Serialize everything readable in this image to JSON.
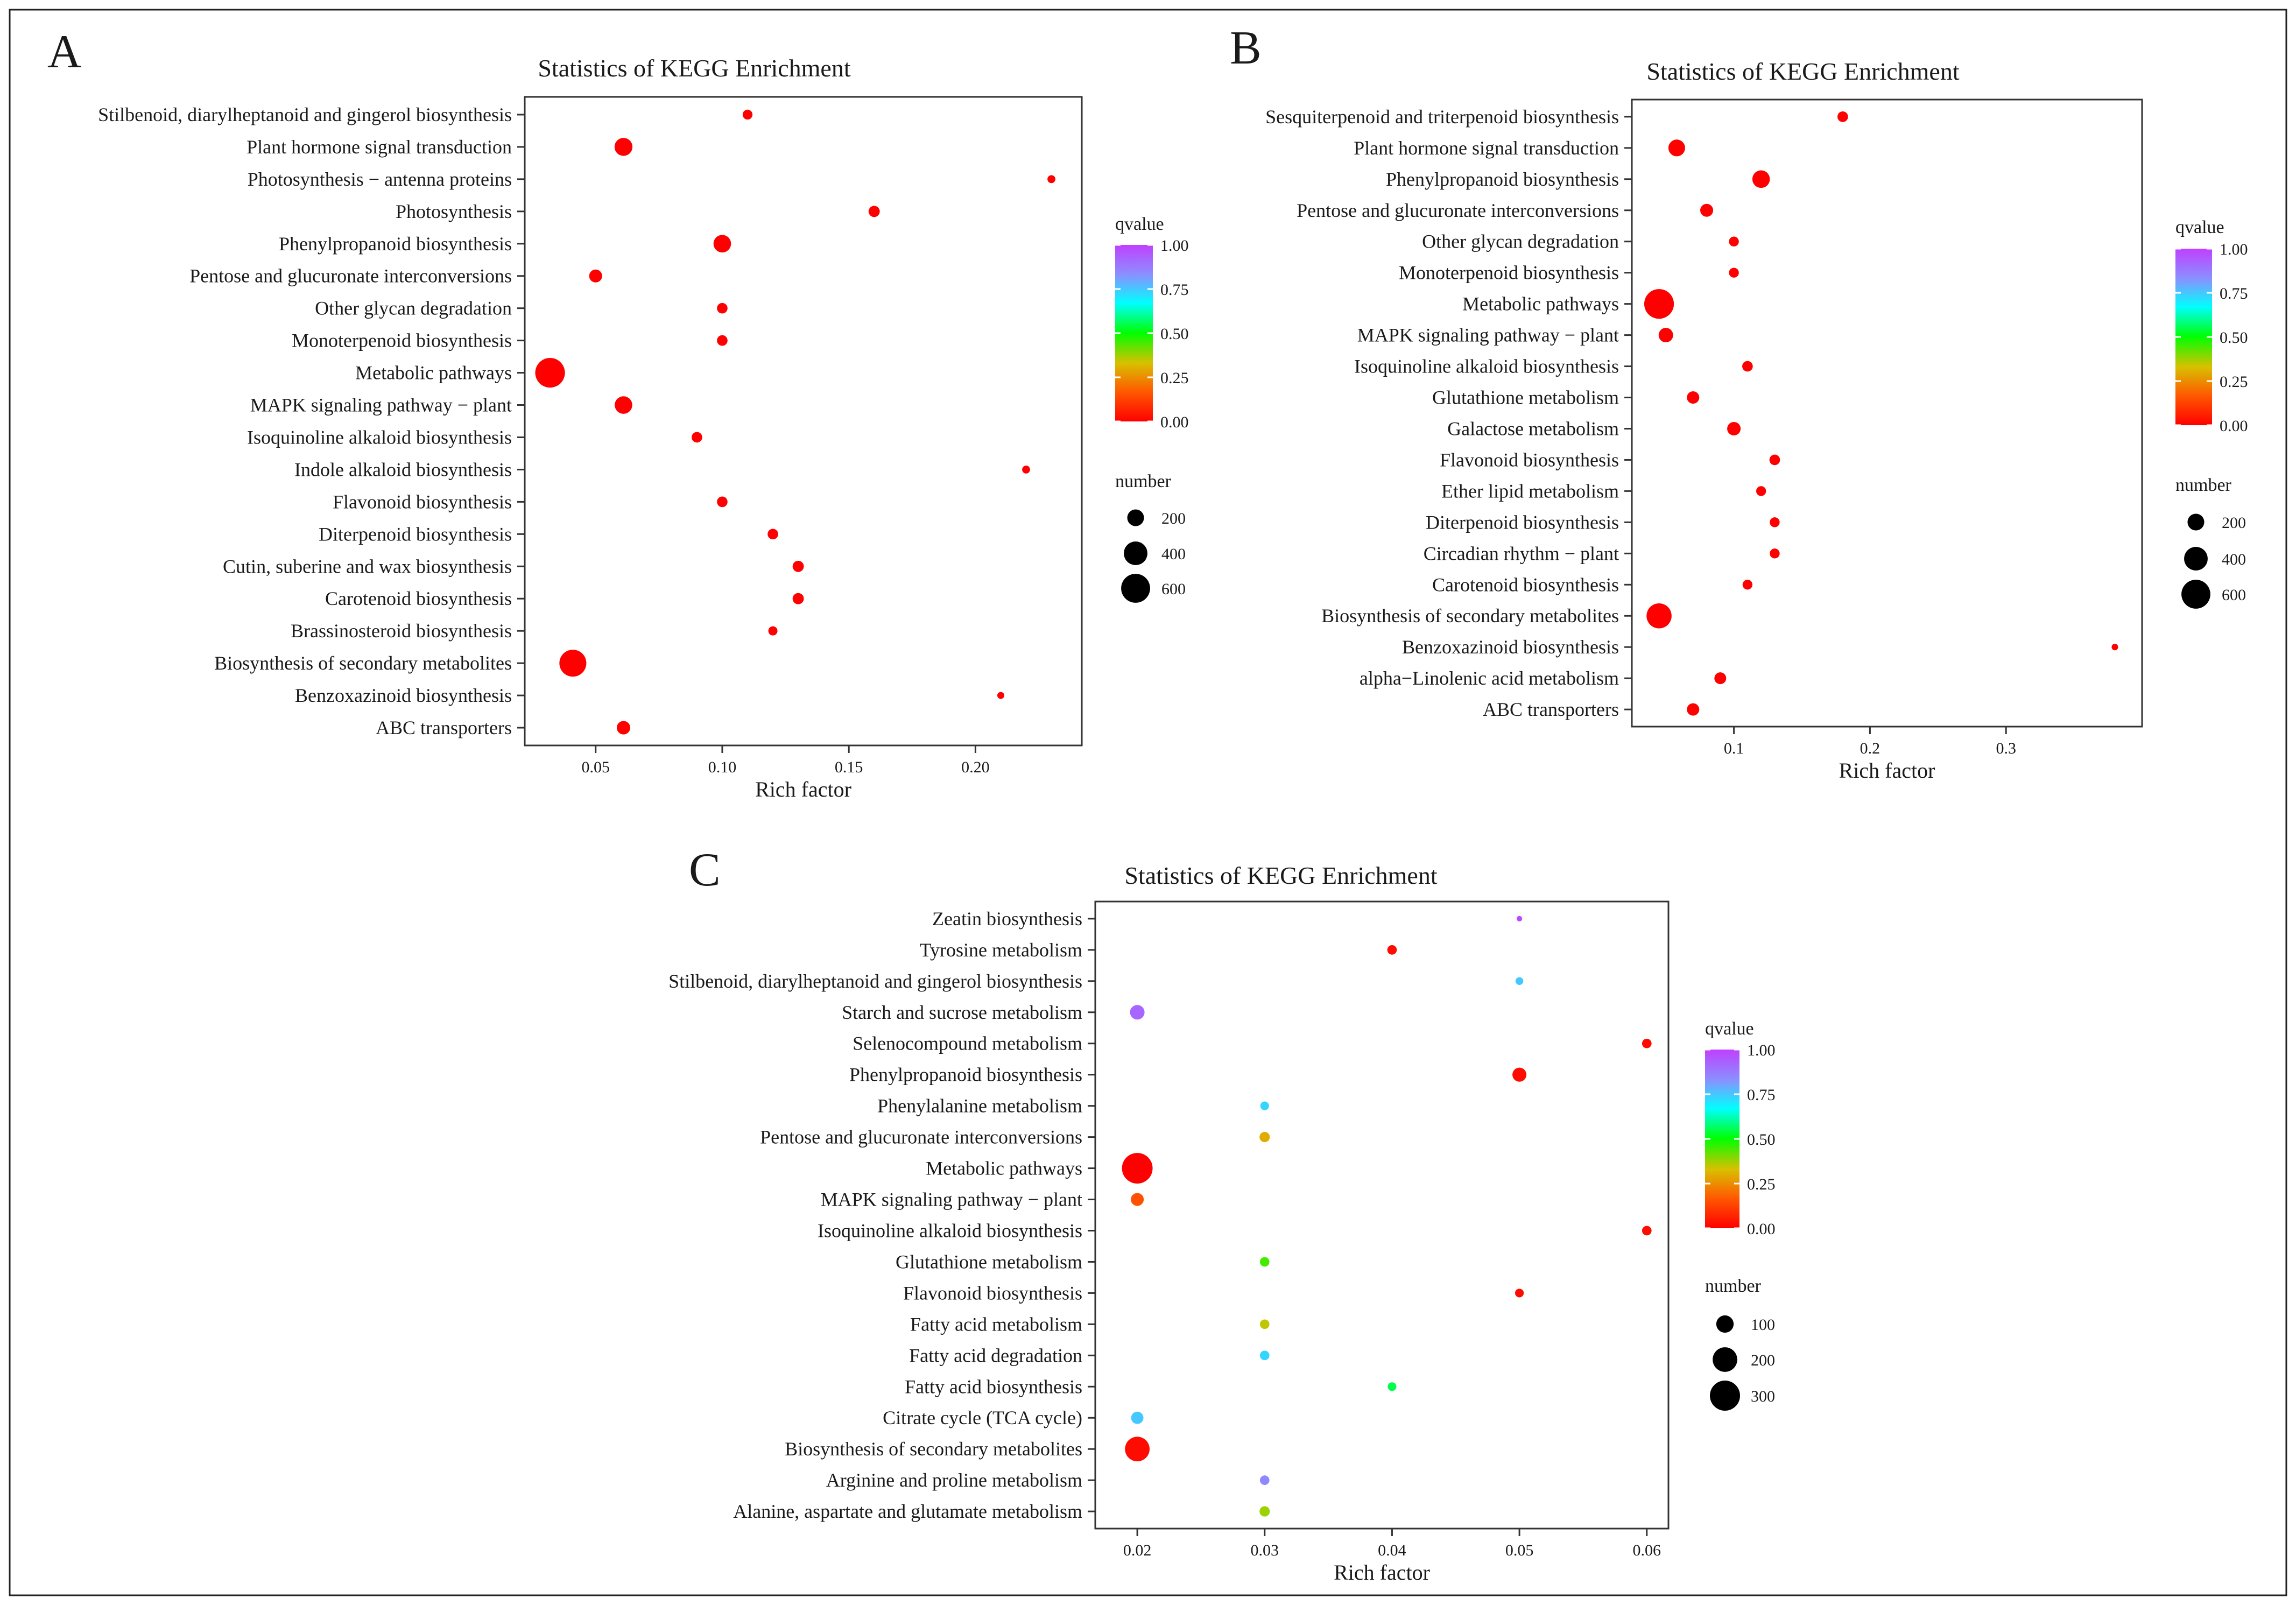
{
  "chart_data": [
    {
      "panel_label": "A",
      "type": "scatter",
      "title": "Statistics of KEGG Enrichment",
      "xlabel": "Rich factor",
      "xlim": [
        0.022,
        0.242
      ],
      "xticks": [
        0.05,
        0.1,
        0.15,
        0.2
      ],
      "xtick_labels": [
        "0.05",
        "0.10",
        "0.15",
        "0.20"
      ],
      "legend_color": {
        "title": "qvalue",
        "ticks": [
          "1.00",
          "0.75",
          "0.50",
          "0.25",
          "0.00"
        ]
      },
      "legend_size": {
        "title": "number",
        "values": [
          200,
          400,
          600
        ],
        "labels": [
          "200",
          "400",
          "600"
        ]
      },
      "size_max": 650,
      "points": [
        {
          "term": "Stilbenoid, diarylheptanoid and gingerol biosynthesis",
          "rich": 0.11,
          "q": 0.0,
          "n": 70
        },
        {
          "term": "Plant hormone signal transduction",
          "rich": 0.061,
          "q": 0.0,
          "n": 230
        },
        {
          "term": "Photosynthesis − antenna proteins",
          "rich": 0.23,
          "q": 0.0,
          "n": 45
        },
        {
          "term": "Photosynthesis",
          "rich": 0.16,
          "q": 0.0,
          "n": 90
        },
        {
          "term": "Phenylpropanoid biosynthesis",
          "rich": 0.1,
          "q": 0.0,
          "n": 220
        },
        {
          "term": "Pentose and glucuronate interconversions",
          "rich": 0.05,
          "q": 0.0,
          "n": 120
        },
        {
          "term": "Other glycan degradation",
          "rich": 0.1,
          "q": 0.0,
          "n": 80
        },
        {
          "term": "Monoterpenoid biosynthesis",
          "rich": 0.1,
          "q": 0.0,
          "n": 80
        },
        {
          "term": "Metabolic pathways",
          "rich": 0.032,
          "q": 0.0,
          "n": 630
        },
        {
          "term": "MAPK signaling pathway − plant",
          "rich": 0.061,
          "q": 0.0,
          "n": 220
        },
        {
          "term": "Isoquinoline alkaloid biosynthesis",
          "rich": 0.09,
          "q": 0.0,
          "n": 80
        },
        {
          "term": "Indole alkaloid biosynthesis",
          "rich": 0.22,
          "q": 0.0,
          "n": 45
        },
        {
          "term": "Flavonoid biosynthesis",
          "rich": 0.1,
          "q": 0.0,
          "n": 80
        },
        {
          "term": "Diterpenoid biosynthesis",
          "rich": 0.12,
          "q": 0.0,
          "n": 80
        },
        {
          "term": "Cutin, suberine and wax biosynthesis",
          "rich": 0.13,
          "q": 0.0,
          "n": 90
        },
        {
          "term": "Carotenoid biosynthesis",
          "rich": 0.13,
          "q": 0.0,
          "n": 90
        },
        {
          "term": "Brassinosteroid biosynthesis",
          "rich": 0.12,
          "q": 0.0,
          "n": 60
        },
        {
          "term": "Biosynthesis of secondary metabolites",
          "rich": 0.041,
          "q": 0.0,
          "n": 520
        },
        {
          "term": "Benzoxazinoid biosynthesis",
          "rich": 0.21,
          "q": 0.0,
          "n": 35
        },
        {
          "term": "ABC transporters",
          "rich": 0.061,
          "q": 0.0,
          "n": 130
        }
      ]
    },
    {
      "panel_label": "B",
      "type": "scatter",
      "title": "Statistics of KEGG Enrichment",
      "xlabel": "Rich factor",
      "xlim": [
        0.025,
        0.4
      ],
      "xticks": [
        0.1,
        0.2,
        0.3
      ],
      "xtick_labels": [
        "0.1",
        "0.2",
        "0.3"
      ],
      "legend_color": {
        "title": "qvalue",
        "ticks": [
          "1.00",
          "0.75",
          "0.50",
          "0.25",
          "0.00"
        ]
      },
      "legend_size": {
        "title": "number",
        "values": [
          200,
          400,
          600
        ],
        "labels": [
          "200",
          "400",
          "600"
        ]
      },
      "size_max": 650,
      "points": [
        {
          "term": "Sesquiterpenoid and triterpenoid biosynthesis",
          "rich": 0.18,
          "q": 0.0,
          "n": 80
        },
        {
          "term": "Plant hormone signal transduction",
          "rich": 0.058,
          "q": 0.0,
          "n": 200
        },
        {
          "term": "Phenylpropanoid biosynthesis",
          "rich": 0.12,
          "q": 0.0,
          "n": 220
        },
        {
          "term": "Pentose and glucuronate interconversions",
          "rich": 0.08,
          "q": 0.0,
          "n": 120
        },
        {
          "term": "Other glycan degradation",
          "rich": 0.1,
          "q": 0.0,
          "n": 70
        },
        {
          "term": "Monoterpenoid biosynthesis",
          "rich": 0.1,
          "q": 0.0,
          "n": 70
        },
        {
          "term": "Metabolic pathways",
          "rich": 0.045,
          "q": 0.0,
          "n": 630
        },
        {
          "term": "MAPK signaling pathway − plant",
          "rich": 0.05,
          "q": 0.0,
          "n": 150
        },
        {
          "term": "Isoquinoline alkaloid biosynthesis",
          "rich": 0.11,
          "q": 0.0,
          "n": 80
        },
        {
          "term": "Glutathione metabolism",
          "rich": 0.07,
          "q": 0.0,
          "n": 110
        },
        {
          "term": "Galactose metabolism",
          "rich": 0.1,
          "q": 0.0,
          "n": 130
        },
        {
          "term": "Flavonoid biosynthesis",
          "rich": 0.13,
          "q": 0.0,
          "n": 80
        },
        {
          "term": "Ether lipid metabolism",
          "rich": 0.12,
          "q": 0.0,
          "n": 70
        },
        {
          "term": "Diterpenoid biosynthesis",
          "rich": 0.13,
          "q": 0.0,
          "n": 70
        },
        {
          "term": "Circadian rhythm − plant",
          "rich": 0.13,
          "q": 0.0,
          "n": 70
        },
        {
          "term": "Carotenoid biosynthesis",
          "rich": 0.11,
          "q": 0.0,
          "n": 70
        },
        {
          "term": "Biosynthesis of secondary metabolites",
          "rich": 0.045,
          "q": 0.0,
          "n": 450
        },
        {
          "term": "Benzoxazinoid biosynthesis",
          "rich": 0.38,
          "q": 0.0,
          "n": 30
        },
        {
          "term": "alpha−Linolenic acid metabolism",
          "rich": 0.09,
          "q": 0.0,
          "n": 100
        },
        {
          "term": "ABC transporters",
          "rich": 0.07,
          "q": 0.0,
          "n": 110
        }
      ]
    },
    {
      "panel_label": "C",
      "type": "scatter",
      "title": "Statistics of KEGG Enrichment",
      "xlabel": "Rich factor",
      "xlim": [
        0.0167,
        0.0617
      ],
      "xticks": [
        0.02,
        0.03,
        0.04,
        0.05,
        0.06
      ],
      "xtick_labels": [
        "0.02",
        "0.03",
        "0.04",
        "0.05",
        "0.06"
      ],
      "legend_color": {
        "title": "qvalue",
        "ticks": [
          "1.00",
          "0.75",
          "0.50",
          "0.25",
          "0.00"
        ]
      },
      "legend_size": {
        "title": "number",
        "values": [
          100,
          200,
          300
        ],
        "labels": [
          "100",
          "200",
          "300"
        ]
      },
      "size_max": 300,
      "points": [
        {
          "term": "Zeatin biosynthesis",
          "rich": 0.05,
          "q": 0.98,
          "n": 10
        },
        {
          "term": "Tyrosine metabolism",
          "rich": 0.04,
          "q": 0.02,
          "n": 30
        },
        {
          "term": "Stilbenoid, diarylheptanoid and gingerol biosynthesis",
          "rich": 0.05,
          "q": 0.75,
          "n": 20
        },
        {
          "term": "Starch and sucrose metabolism",
          "rich": 0.02,
          "q": 0.92,
          "n": 70
        },
        {
          "term": "Selenocompound metabolism",
          "rich": 0.06,
          "q": 0.02,
          "n": 30
        },
        {
          "term": "Phenylpropanoid biosynthesis",
          "rich": 0.05,
          "q": 0.02,
          "n": 65
        },
        {
          "term": "Phenylalanine metabolism",
          "rich": 0.03,
          "q": 0.73,
          "n": 25
        },
        {
          "term": "Pentose and glucuronate interconversions",
          "rich": 0.03,
          "q": 0.3,
          "n": 35
        },
        {
          "term": "Metabolic pathways",
          "rich": 0.02,
          "q": 0.0,
          "n": 310
        },
        {
          "term": "MAPK signaling pathway − plant",
          "rich": 0.02,
          "q": 0.15,
          "n": 55
        },
        {
          "term": "Isoquinoline alkaloid biosynthesis",
          "rich": 0.06,
          "q": 0.02,
          "n": 30
        },
        {
          "term": "Glutathione metabolism",
          "rich": 0.03,
          "q": 0.45,
          "n": 30
        },
        {
          "term": "Flavonoid biosynthesis",
          "rich": 0.05,
          "q": 0.02,
          "n": 25
        },
        {
          "term": "Fatty acid metabolism",
          "rich": 0.03,
          "q": 0.35,
          "n": 30
        },
        {
          "term": "Fatty acid degradation",
          "rich": 0.03,
          "q": 0.73,
          "n": 30
        },
        {
          "term": "Fatty acid biosynthesis",
          "rich": 0.04,
          "q": 0.55,
          "n": 25
        },
        {
          "term": "Citrate cycle (TCA cycle)",
          "rich": 0.02,
          "q": 0.75,
          "n": 50
        },
        {
          "term": "Biosynthesis of secondary metabolites",
          "rich": 0.02,
          "q": 0.02,
          "n": 200
        },
        {
          "term": "Arginine and proline metabolism",
          "rich": 0.03,
          "q": 0.85,
          "n": 30
        },
        {
          "term": "Alanine, aspartate and glutamate metabolism",
          "rich": 0.03,
          "q": 0.38,
          "n": 35
        }
      ]
    }
  ],
  "colors": {
    "gradient": [
      "#ff0000",
      "#ff5a00",
      "#d8c000",
      "#00ff00",
      "#00ffff",
      "#8a90ff",
      "#c040ff"
    ],
    "axis": "#333333",
    "border": "#222222"
  }
}
